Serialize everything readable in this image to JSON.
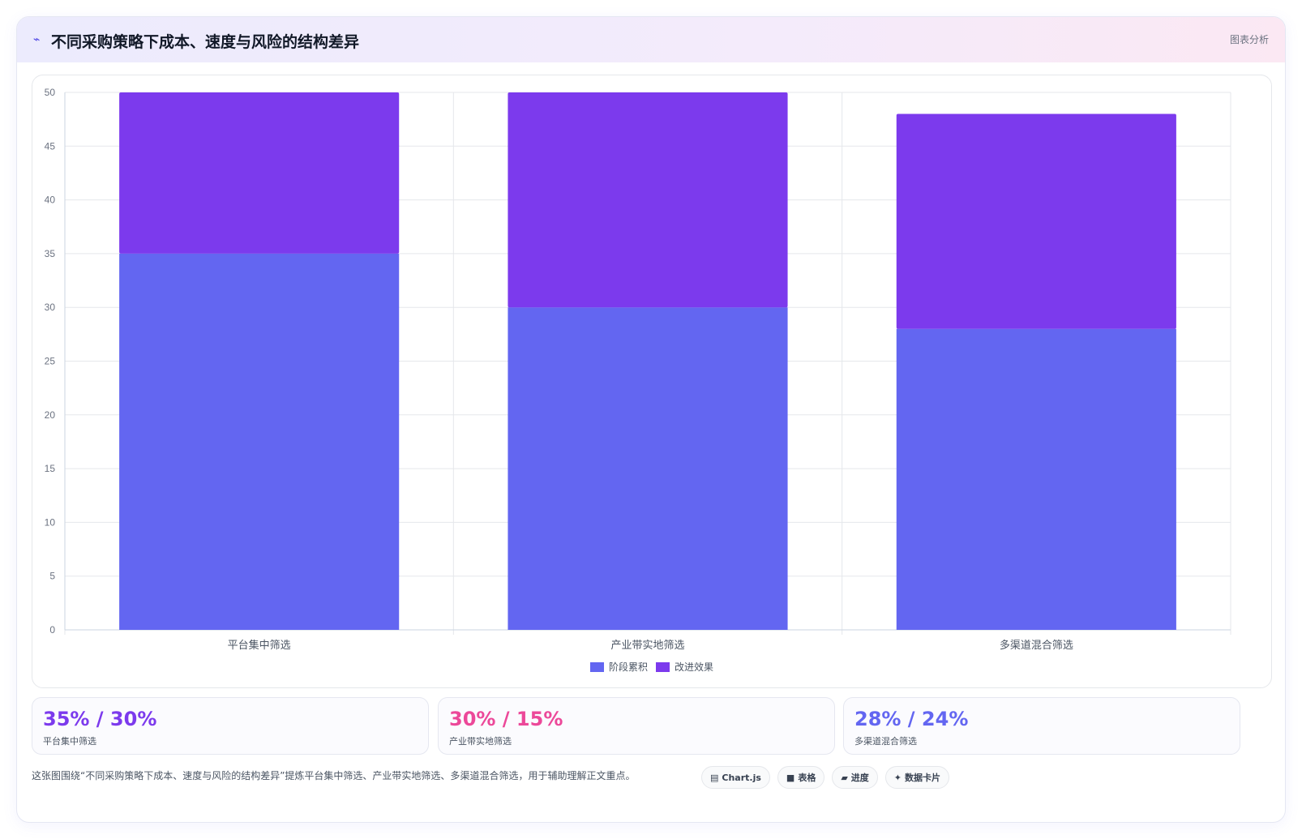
{
  "header": {
    "icon": "trend-icon",
    "title": "不同采购策略下成本、速度与风险的结构差异",
    "tag": "图表分析"
  },
  "chart_data": {
    "type": "bar",
    "stacked": true,
    "title": "",
    "xlabel": "",
    "ylabel": "",
    "categories": [
      "平台集中筛选",
      "产业带实地筛选",
      "多渠道混合筛选"
    ],
    "series": [
      {
        "name": "阶段累积",
        "values": [
          35,
          30,
          28
        ],
        "color": "#6366f1"
      },
      {
        "name": "改进效果",
        "values": [
          15,
          20,
          20
        ],
        "color": "#7c3aed"
      }
    ],
    "ylim": [
      0,
      50
    ],
    "yticks": [
      0,
      5,
      10,
      15,
      20,
      25,
      30,
      35,
      40,
      45,
      50
    ],
    "grid": true,
    "legend_position": "bottom"
  },
  "stats": [
    {
      "value": "35% / 30%",
      "label": "平台集中筛选",
      "color": "#7c3aed"
    },
    {
      "value": "30% / 15%",
      "label": "产业带实地筛选",
      "color": "#ec4899"
    },
    {
      "value": "28% / 24%",
      "label": "多渠道混合筛选",
      "color": "#6366f1"
    }
  ],
  "footer": {
    "description": "这张图围绕“不同采购策略下成本、速度与风险的结构差异”提炼平台集中筛选、产业带实地筛选、多渠道混合筛选，用于辅助理解正文重点。",
    "chips": [
      {
        "icon": "chart-icon",
        "glyph": "▤",
        "label": "Chart.js"
      },
      {
        "icon": "table-icon",
        "glyph": "■",
        "label": "表格"
      },
      {
        "icon": "progress-icon",
        "glyph": "▰",
        "label": "进度"
      },
      {
        "icon": "sparkle-icon",
        "glyph": "✦",
        "label": "数据卡片"
      }
    ]
  }
}
